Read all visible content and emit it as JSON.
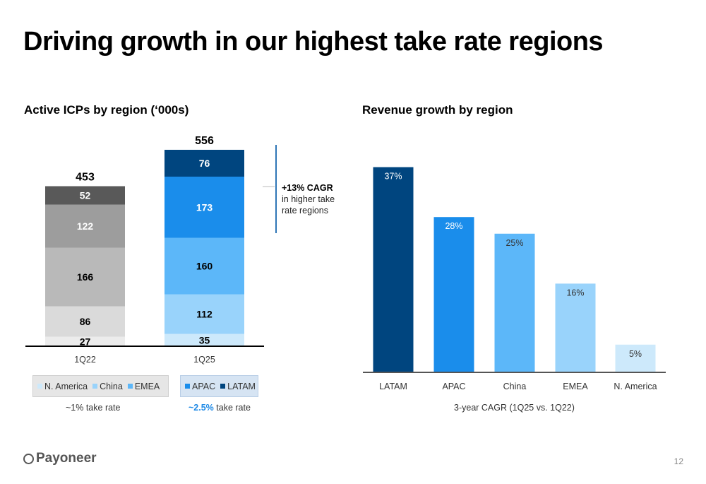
{
  "title": "Driving growth in our highest take rate regions",
  "colors": {
    "n_america": "#cde9fb",
    "china": "#99d3fb",
    "emea": "#5cb7f9",
    "apac": "#1a8deb",
    "latam": "#00457f",
    "gray_1": "#ececec",
    "gray_2": "#dadada",
    "gray_3": "#b9b9b9",
    "gray_4": "#9d9d9d",
    "gray_5": "#595959"
  },
  "left": {
    "subtitle": "Active ICPs by region (‘000s)",
    "legend_left": [
      "N. America",
      "China",
      "EMEA"
    ],
    "legend_right": [
      "APAC",
      "LATAM"
    ],
    "note_left": "~1% take rate",
    "note_right_highlight": "~2.5%",
    "note_right_rest": " take rate",
    "cagr_bold": "+13% CAGR",
    "cagr_text_1": "in higher take",
    "cagr_text_2": "rate regions"
  },
  "right": {
    "subtitle": "Revenue growth by region",
    "xtitle": "3-year CAGR (1Q25 vs. 1Q22)"
  },
  "footer": {
    "logo": "Payoneer",
    "page": "12"
  },
  "chart_data": [
    {
      "type": "bar",
      "stacked": true,
      "title": "Active ICPs by region (‘000s)",
      "categories": [
        "1Q22",
        "1Q25"
      ],
      "series": [
        {
          "name": "N. America",
          "values": [
            27,
            35
          ]
        },
        {
          "name": "China",
          "values": [
            86,
            112
          ]
        },
        {
          "name": "EMEA",
          "values": [
            166,
            160
          ]
        },
        {
          "name": "APAC",
          "values": [
            122,
            173
          ]
        },
        {
          "name": "LATAM",
          "values": [
            52,
            76
          ]
        }
      ],
      "totals": [
        453,
        556
      ],
      "legend": "bottom"
    },
    {
      "type": "bar",
      "title": "Revenue growth by region",
      "categories": [
        "LATAM",
        "APAC",
        "China",
        "EMEA",
        "N. America"
      ],
      "values": [
        37,
        28,
        25,
        16,
        5
      ],
      "value_labels": [
        "37%",
        "28%",
        "25%",
        "16%",
        "5%"
      ],
      "xlabel": "3-year CAGR (1Q25 vs. 1Q22)"
    }
  ]
}
